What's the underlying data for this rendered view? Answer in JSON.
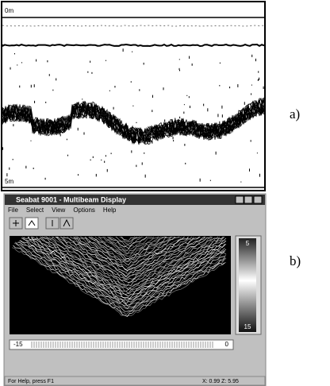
{
  "panel_a": {
    "label": "a)",
    "depth_top": "0m",
    "depth_bottom": "5m"
  },
  "panel_b": {
    "label": "b)",
    "window_title": "Seabat 9001 - Multibeam Display",
    "menu": [
      "File",
      "Select",
      "View",
      "Options",
      "Help"
    ],
    "colorbar_top": "5",
    "colorbar_bottom": "15",
    "slider_left": "-15",
    "slider_right": "0",
    "status_left": "For Help, press F1",
    "status_right": "X: 0.99  Z: 5.95"
  }
}
